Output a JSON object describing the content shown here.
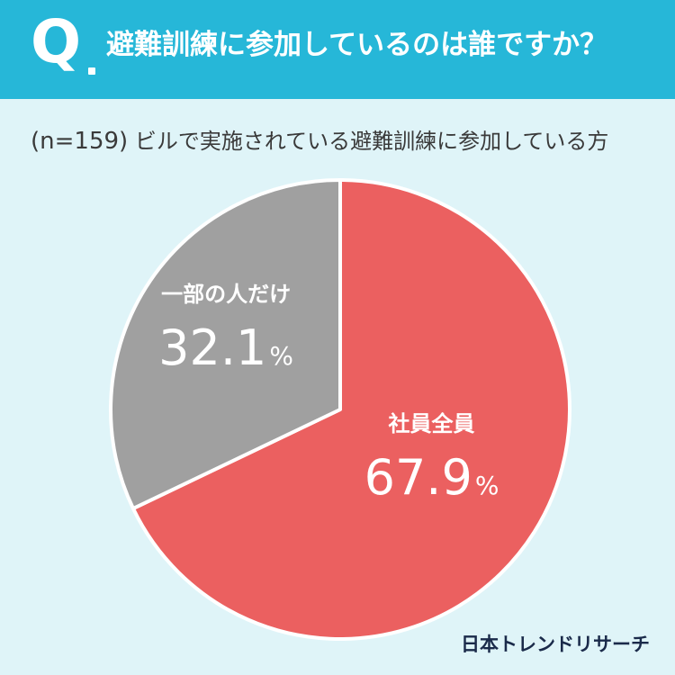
{
  "header": {
    "q_mark": "Q",
    "question": "避難訓練に参加しているのは誰ですか？"
  },
  "sample": {
    "n": "(n=159)",
    "description": "ビルで実施されている避難訓練に参加している方"
  },
  "chart_data": {
    "type": "pie",
    "slices": [
      {
        "label": "社員全員",
        "value": 67.9,
        "color": "#eb6060"
      },
      {
        "label": "一部の人だけ",
        "value": 32.1,
        "color": "#a0a0a0"
      }
    ],
    "unit": "%"
  },
  "logo": "日本トレンドリサーチ",
  "colors": {
    "header_bg": "#26b7d8",
    "page_bg": "#dff4f8"
  }
}
